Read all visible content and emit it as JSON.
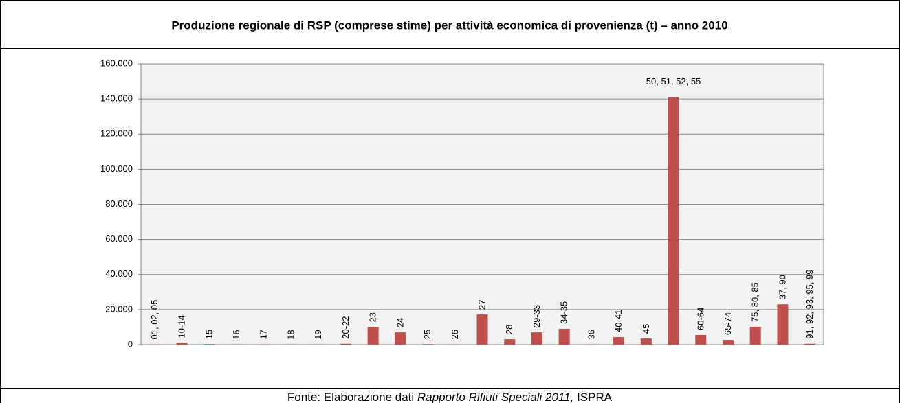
{
  "chart_data": {
    "type": "bar",
    "title": "Produzione regionale di RSP (comprese stime) per attività economica di provenienza (t) – anno 2010",
    "categories": [
      "01, 02, 05",
      "10-14",
      "15",
      "16",
      "17",
      "18",
      "19",
      "20-22",
      "23",
      "24",
      "25",
      "26",
      "27",
      "28",
      "29-33",
      "34-35",
      "36",
      "40-41",
      "45",
      "50, 51, 52, 55",
      "60-64",
      "65-74",
      "75, 80, 85",
      "37, 90",
      "91, 92, 93, 95, 99"
    ],
    "values": [
      200,
      1000,
      300,
      100,
      200,
      100,
      100,
      500,
      10000,
      7000,
      300,
      200,
      17200,
      3100,
      7000,
      9000,
      200,
      4300,
      3500,
      141000,
      5500,
      2700,
      10200,
      23000,
      500
    ],
    "color": "#c0504d",
    "ylim": [
      0,
      160000
    ],
    "yticks": [
      0,
      {
        "value": 20000,
        "label": "20.000"
      },
      {
        "value": 40000,
        "label": "40.000"
      },
      {
        "value": 60000,
        "label": "60.000"
      },
      {
        "value": 80000,
        "label": "80.000"
      },
      {
        "value": 100000,
        "label": "100.000"
      },
      {
        "value": 120000,
        "label": "120.000"
      },
      {
        "value": 140000,
        "label": "140.000"
      },
      {
        "value": 160000,
        "label": "160.000"
      }
    ],
    "grid": true
  },
  "footer": {
    "prefix": "Fonte: Elaborazione dati ",
    "italic": "Rapporto Rifiuti Speciali 2011,",
    "suffix": " ISPRA"
  }
}
